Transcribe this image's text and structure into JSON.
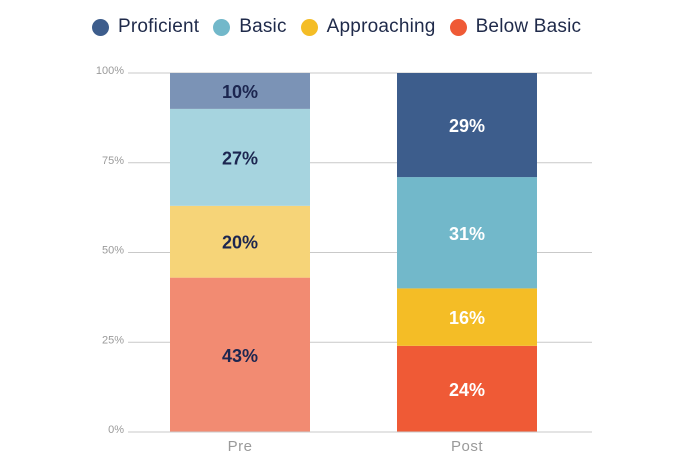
{
  "chart_data": {
    "type": "bar",
    "stacked": true,
    "categories": [
      "Pre",
      "Post"
    ],
    "series": [
      {
        "name": "Below Basic",
        "values": [
          43,
          24
        ],
        "labels": [
          "43%",
          "24%"
        ]
      },
      {
        "name": "Approaching",
        "values": [
          20,
          16
        ],
        "labels": [
          "20%",
          "16%"
        ]
      },
      {
        "name": "Basic",
        "values": [
          27,
          31
        ],
        "labels": [
          "27%",
          "31%"
        ]
      },
      {
        "name": "Proficient",
        "values": [
          10,
          29
        ],
        "labels": [
          "10%",
          "29%"
        ]
      }
    ],
    "legend_order": [
      "Proficient",
      "Basic",
      "Approaching",
      "Below Basic"
    ],
    "ylim": [
      0,
      100
    ],
    "yticks": [
      0,
      25,
      50,
      75,
      100
    ],
    "ytick_labels": [
      "0%",
      "25%",
      "50%",
      "75%",
      "100%"
    ],
    "grid": true,
    "legend_position": "top",
    "colors": {
      "Pre": {
        "Below Basic": "#f28b72",
        "Approaching": "#f6d478",
        "Basic": "#a6d4df",
        "Proficient": "#7b93b6"
      },
      "Post": {
        "Below Basic": "#ef5a36",
        "Approaching": "#f4bd26",
        "Basic": "#72b8ca",
        "Proficient": "#3d5d8c"
      },
      "legend": {
        "Proficient": "#3d5d8c",
        "Basic": "#72b8ca",
        "Approaching": "#f4bd26",
        "Below Basic": "#ef5a36"
      },
      "label_text_pre": "#1c2650",
      "label_text_post": "#ffffff"
    }
  }
}
